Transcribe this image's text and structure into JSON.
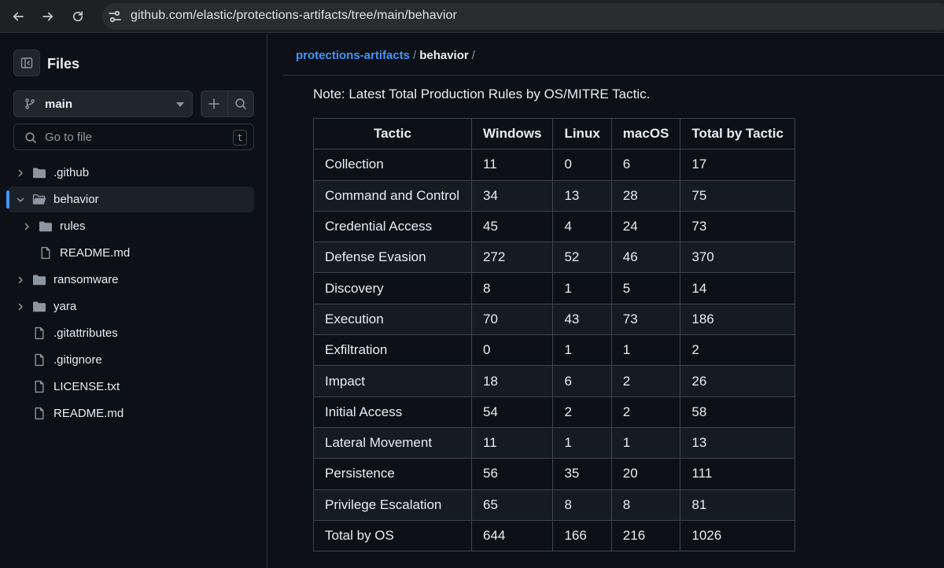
{
  "browser": {
    "url": "github.com/elastic/protections-artifacts/tree/main/behavior"
  },
  "sidebar": {
    "title": "Files",
    "branch": "main",
    "goto_placeholder": "Go to file",
    "goto_shortcut": "t",
    "tree": [
      {
        "label": ".github",
        "type": "folder",
        "depth": 0,
        "expanded": false
      },
      {
        "label": "behavior",
        "type": "folder",
        "depth": 0,
        "expanded": true,
        "active": true
      },
      {
        "label": "rules",
        "type": "folder",
        "depth": 1,
        "expanded": false
      },
      {
        "label": "README.md",
        "type": "file",
        "depth": 1
      },
      {
        "label": "ransomware",
        "type": "folder",
        "depth": 0,
        "expanded": false
      },
      {
        "label": "yara",
        "type": "folder",
        "depth": 0,
        "expanded": false
      },
      {
        "label": ".gitattributes",
        "type": "file",
        "depth": 0
      },
      {
        "label": ".gitignore",
        "type": "file",
        "depth": 0
      },
      {
        "label": "LICENSE.txt",
        "type": "file",
        "depth": 0
      },
      {
        "label": "README.md",
        "type": "file",
        "depth": 0
      }
    ]
  },
  "breadcrumb": {
    "repo": "protections-artifacts",
    "sep": "/",
    "current": "behavior",
    "trail_sep": "/"
  },
  "content": {
    "note": "Note: Latest Total Production Rules by OS/MITRE Tactic.",
    "table": {
      "headers": [
        "Tactic",
        "Windows",
        "Linux",
        "macOS",
        "Total by Tactic"
      ],
      "rows": [
        [
          "Collection",
          "11",
          "0",
          "6",
          "17"
        ],
        [
          "Command and Control",
          "34",
          "13",
          "28",
          "75"
        ],
        [
          "Credential Access",
          "45",
          "4",
          "24",
          "73"
        ],
        [
          "Defense Evasion",
          "272",
          "52",
          "46",
          "370"
        ],
        [
          "Discovery",
          "8",
          "1",
          "5",
          "14"
        ],
        [
          "Execution",
          "70",
          "43",
          "73",
          "186"
        ],
        [
          "Exfiltration",
          "0",
          "1",
          "1",
          "2"
        ],
        [
          "Impact",
          "18",
          "6",
          "2",
          "26"
        ],
        [
          "Initial Access",
          "54",
          "2",
          "2",
          "58"
        ],
        [
          "Lateral Movement",
          "11",
          "1",
          "1",
          "13"
        ],
        [
          "Persistence",
          "56",
          "35",
          "20",
          "111"
        ],
        [
          "Privilege Escalation",
          "65",
          "8",
          "8",
          "81"
        ],
        [
          "Total by OS",
          "644",
          "166",
          "216",
          "1026"
        ]
      ]
    }
  }
}
